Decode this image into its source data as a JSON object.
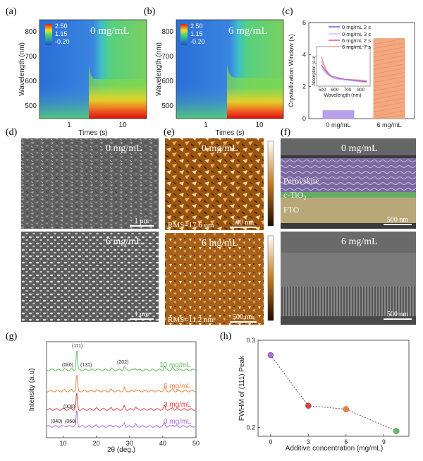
{
  "panels": {
    "a": {
      "label": "(a)",
      "conc": "0 mg/mL"
    },
    "b": {
      "label": "(b)",
      "conc": "6 mg/mL"
    },
    "c": {
      "label": "(c)"
    },
    "d": {
      "label": "(d)",
      "top_conc": "0 mg/mL",
      "bottom_conc": "6 mg/mL",
      "scale_top": "1 μm",
      "scale_bottom": "1 μm"
    },
    "e": {
      "label": "(e)",
      "top_conc": "0 mg/mL",
      "bottom_conc": "6 mg/mL",
      "rms_top": "RMS=17.6 nm",
      "rms_bottom": "RMS=11.2 nm",
      "scale": "500 nm"
    },
    "f": {
      "label": "(f)",
      "top_conc": "0 mg/mL",
      "bottom_conc": "6 mg/mL",
      "layer_perovskite": "Perovskite",
      "layer_tio": "c-TiO₂",
      "layer_fto": "FTO",
      "scale": "500 nm"
    },
    "g": {
      "label": "(g)"
    },
    "h": {
      "label": "(h)"
    }
  },
  "heatmap": {
    "colorbar": [
      "2.50",
      "1.15",
      "-0.20"
    ],
    "ylabel": "Wavelength (nm)",
    "xlabel": "Times (s)",
    "yticks": [
      "800",
      "700",
      "600",
      "500"
    ],
    "xticks": [
      "1",
      "10"
    ]
  },
  "colors": {
    "purple": "#9a55e8",
    "orange": "#f0a070",
    "green": "#5cc05c",
    "red": "#e04040",
    "violet": "#b466e6"
  },
  "chart_data": [
    {
      "type": "bar",
      "panel": "c",
      "categories": [
        "0 mg/mL",
        "6 mg/mL"
      ],
      "values": [
        0.5,
        5.0
      ],
      "ylabel": "Crystallization Window (s)",
      "ylim": [
        0,
        6
      ],
      "yticks": [
        "0",
        "2",
        "4",
        "6"
      ],
      "inset": {
        "legend": [
          "0 mg/mL 2 s",
          "0 mg/mL 3 s",
          "6 mg/mL 2 s",
          "6 mg/mL 7 s"
        ],
        "ylabel": "Absorption (a.u)",
        "xlabel": "Wavelength (nm)",
        "xticks": [
          "500",
          "600",
          "700",
          "800"
        ]
      }
    },
    {
      "type": "line",
      "panel": "g",
      "xlabel": "2θ (deg.)",
      "ylabel": "Intensity (a.u)",
      "xlim": [
        5,
        50
      ],
      "xticks": [
        "10",
        "20",
        "30",
        "40",
        "50"
      ],
      "series": [
        {
          "name": "10 mg/mL"
        },
        {
          "name": "6 mg/mL"
        },
        {
          "name": "3 mg/mL"
        },
        {
          "name": "0 mg/mL"
        }
      ],
      "annotations": [
        "(111)",
        "(0k0)",
        "(131)",
        "(202)",
        "(006)",
        "(040)",
        "(060)"
      ]
    },
    {
      "type": "scatter",
      "panel": "h",
      "x": [
        0,
        3,
        6,
        10
      ],
      "y": [
        0.283,
        0.225,
        0.221,
        0.196
      ],
      "xlabel": "Additive concentration (mg/mL)",
      "ylabel": "FWHM of (111) Peak",
      "xlim": [
        -1,
        11
      ],
      "ylim": [
        0.19,
        0.3
      ],
      "xticks": [
        "0",
        "3",
        "6",
        "9"
      ],
      "yticks": [
        "0.2",
        "0.3"
      ]
    }
  ]
}
